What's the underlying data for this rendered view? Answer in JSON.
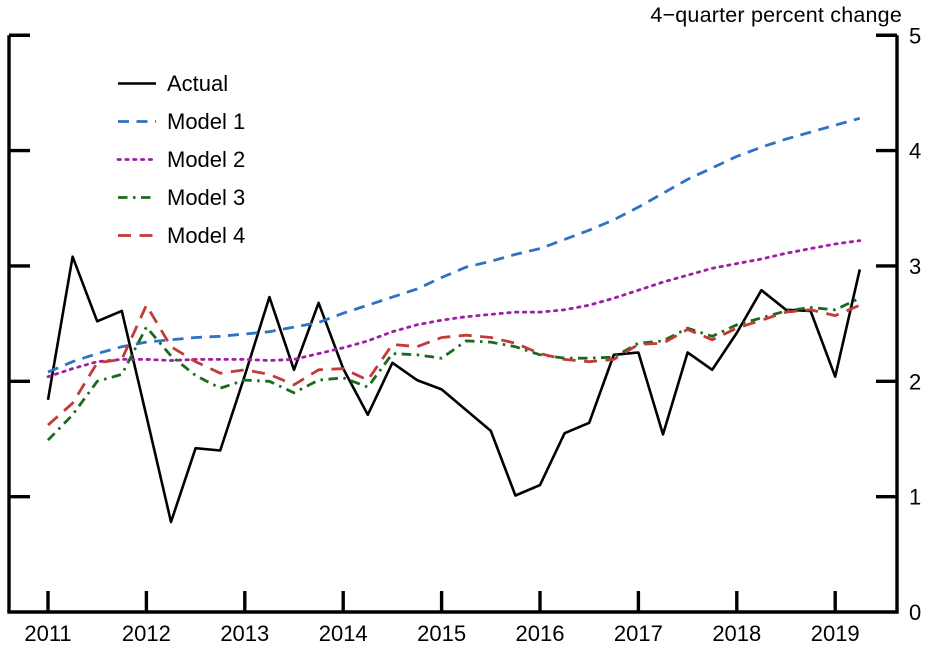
{
  "chart_data": {
    "type": "line",
    "title": "4−quarter percent change",
    "xlabel": "",
    "ylabel": "",
    "x_start": 2011,
    "x_step": 0.25,
    "x_ticks": [
      "2011",
      "2012",
      "2013",
      "2014",
      "2015",
      "2016",
      "2017",
      "2018",
      "2019"
    ],
    "y_ticks": [
      0,
      1,
      2,
      3,
      4,
      5
    ],
    "ylim": [
      0,
      5
    ],
    "xlim": [
      2010.6,
      2019.63
    ],
    "grid": false,
    "legend_position": "upper-left-inside",
    "series": [
      {
        "name": "Actual",
        "color": "#000000",
        "style": "solid",
        "values": [
          1.84,
          3.08,
          2.52,
          2.61,
          1.7,
          0.78,
          1.42,
          1.4,
          2.05,
          2.73,
          2.1,
          2.68,
          2.11,
          1.71,
          2.16,
          2.01,
          1.93,
          1.75,
          1.57,
          1.01,
          1.1,
          1.55,
          1.64,
          2.23,
          2.25,
          1.54,
          2.25,
          2.1,
          2.42,
          2.79,
          2.62,
          2.61,
          2.04,
          2.97
        ]
      },
      {
        "name": "Model 1",
        "color": "#2F72C4",
        "style": "dashed",
        "values": [
          2.08,
          2.17,
          2.24,
          2.3,
          2.34,
          2.36,
          2.38,
          2.39,
          2.41,
          2.43,
          2.47,
          2.51,
          2.59,
          2.66,
          2.73,
          2.8,
          2.9,
          2.99,
          3.04,
          3.1,
          3.15,
          3.23,
          3.31,
          3.4,
          3.51,
          3.63,
          3.75,
          3.85,
          3.95,
          4.03,
          4.1,
          4.16,
          4.22,
          4.28
        ]
      },
      {
        "name": "Model 2",
        "color": "#A01DA5",
        "style": "dotted",
        "values": [
          2.04,
          2.11,
          2.17,
          2.19,
          2.19,
          2.18,
          2.19,
          2.19,
          2.19,
          2.18,
          2.19,
          2.24,
          2.29,
          2.35,
          2.43,
          2.49,
          2.53,
          2.56,
          2.58,
          2.6,
          2.6,
          2.62,
          2.66,
          2.72,
          2.79,
          2.86,
          2.92,
          2.98,
          3.02,
          3.06,
          3.11,
          3.15,
          3.19,
          3.22
        ]
      },
      {
        "name": "Model 3",
        "color": "#1B6B1E",
        "style": "dashdot",
        "values": [
          1.49,
          1.71,
          2.0,
          2.06,
          2.47,
          2.22,
          2.05,
          1.94,
          2.01,
          2.0,
          1.9,
          2.01,
          2.03,
          1.95,
          2.24,
          2.23,
          2.2,
          2.35,
          2.34,
          2.3,
          2.23,
          2.2,
          2.2,
          2.21,
          2.33,
          2.35,
          2.46,
          2.39,
          2.49,
          2.55,
          2.61,
          2.64,
          2.62,
          2.72
        ]
      },
      {
        "name": "Model 4",
        "color": "#C13B38",
        "style": "longdash",
        "values": [
          1.62,
          1.81,
          2.16,
          2.19,
          2.66,
          2.3,
          2.17,
          2.07,
          2.1,
          2.06,
          1.97,
          2.1,
          2.11,
          2.01,
          2.32,
          2.3,
          2.38,
          2.4,
          2.38,
          2.33,
          2.24,
          2.19,
          2.17,
          2.19,
          2.32,
          2.33,
          2.45,
          2.36,
          2.46,
          2.53,
          2.6,
          2.62,
          2.57,
          2.66
        ]
      }
    ]
  }
}
